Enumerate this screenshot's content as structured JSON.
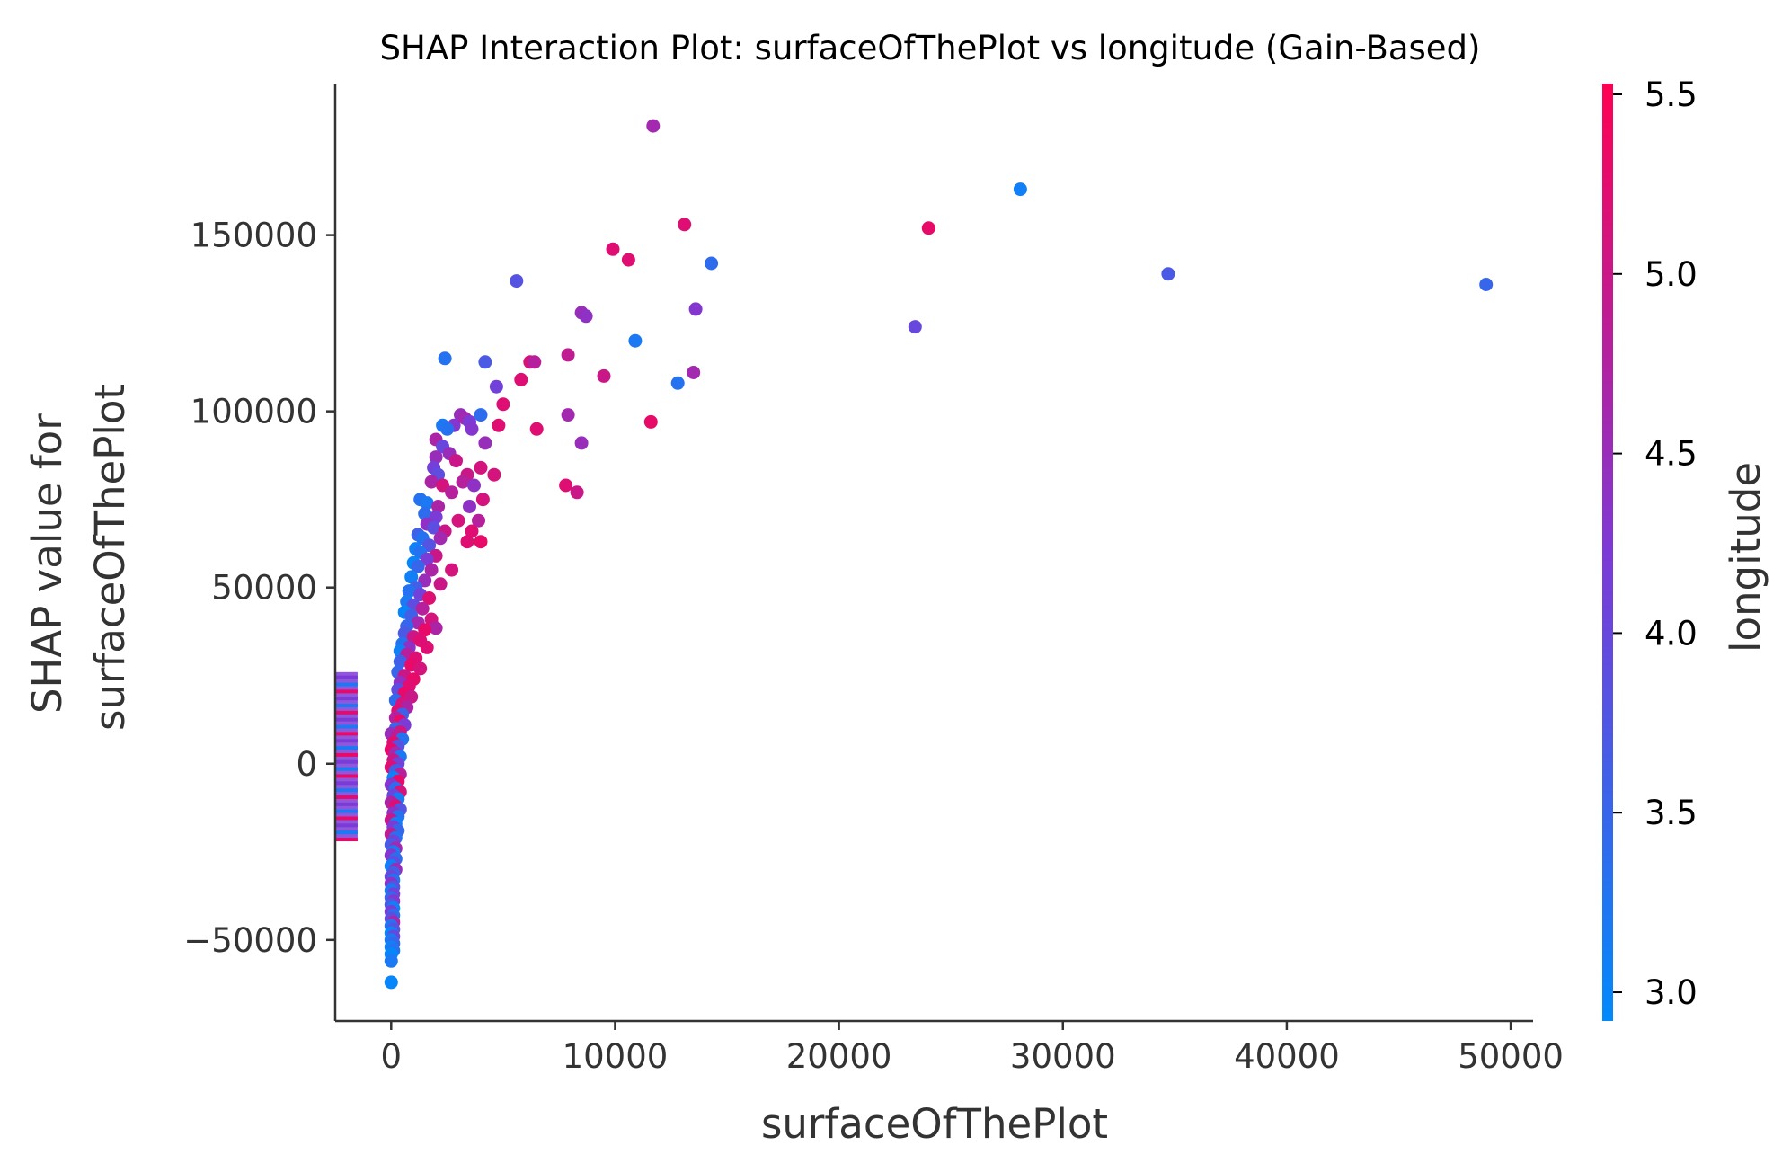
{
  "chart_data": {
    "type": "scatter",
    "title": "SHAP Interaction Plot: surfaceOfThePlot vs longitude (Gain-Based)",
    "xlabel": "surfaceOfThePlot",
    "ylabel_lines": [
      "SHAP value for",
      "surfaceOfThePlot"
    ],
    "colorbar_label": "longitude",
    "xlim": [
      -2500,
      51000
    ],
    "ylim": [
      -73000,
      193000
    ],
    "x_ticks": [
      0,
      10000,
      20000,
      30000,
      40000,
      50000
    ],
    "x_tick_labels": [
      "0",
      "10000",
      "20000",
      "30000",
      "40000",
      "50000"
    ],
    "y_ticks": [
      -50000,
      0,
      50000,
      100000,
      150000
    ],
    "y_tick_labels": [
      "−50000",
      "0",
      "50000",
      "100000",
      "150000"
    ],
    "color_range": [
      2.92,
      5.53
    ],
    "colorbar_ticks": [
      3.0,
      3.5,
      4.0,
      4.5,
      5.0,
      5.5
    ],
    "colorbar_tick_labels": [
      "3.0",
      "3.5",
      "4.0",
      "4.5",
      "5.0",
      "5.5"
    ],
    "colormap": [
      "#008afb",
      "#7d39d6",
      "#ff0052"
    ],
    "missing_x_strip": {
      "x_range": [
        -2500,
        -1500
      ],
      "y_range": [
        -22000,
        26000
      ]
    },
    "points": [
      [
        11700,
        181000,
        4.6
      ],
      [
        28100,
        163000,
        3.1
      ],
      [
        24000,
        152000,
        5.3
      ],
      [
        13100,
        153000,
        5.2
      ],
      [
        9900,
        146000,
        5.2
      ],
      [
        10600,
        143000,
        5.2
      ],
      [
        14300,
        142000,
        3.4
      ],
      [
        34700,
        139000,
        3.7
      ],
      [
        48900,
        136000,
        3.5
      ],
      [
        5600,
        137000,
        3.8
      ],
      [
        13600,
        129000,
        4.3
      ],
      [
        8500,
        128000,
        4.5
      ],
      [
        8700,
        127000,
        4.4
      ],
      [
        23400,
        124000,
        4.0
      ],
      [
        10900,
        120000,
        3.2
      ],
      [
        7900,
        116000,
        4.9
      ],
      [
        6200,
        114000,
        5.1
      ],
      [
        6400,
        114000,
        4.8
      ],
      [
        4200,
        114000,
        3.7
      ],
      [
        2400,
        115000,
        3.3
      ],
      [
        5800,
        109000,
        5.2
      ],
      [
        9500,
        110000,
        5.0
      ],
      [
        13500,
        111000,
        4.6
      ],
      [
        12800,
        108000,
        3.3
      ],
      [
        4700,
        107000,
        4.1
      ],
      [
        5000,
        102000,
        5.2
      ],
      [
        4000,
        99000,
        3.4
      ],
      [
        7900,
        99000,
        4.6
      ],
      [
        11600,
        97000,
        5.3
      ],
      [
        4800,
        96000,
        5.2
      ],
      [
        6500,
        95000,
        5.2
      ],
      [
        8500,
        91000,
        4.5
      ],
      [
        4200,
        91000,
        4.5
      ],
      [
        3100,
        99000,
        4.5
      ],
      [
        3300,
        98000,
        4.6
      ],
      [
        3500,
        97000,
        4.2
      ],
      [
        3600,
        95000,
        4.3
      ],
      [
        2800,
        96000,
        4.3
      ],
      [
        2300,
        96000,
        3.2
      ],
      [
        2500,
        95000,
        3.3
      ],
      [
        2000,
        92000,
        4.7
      ],
      [
        2300,
        90000,
        4.0
      ],
      [
        2600,
        88000,
        4.5
      ],
      [
        2000,
        87000,
        4.5
      ],
      [
        2900,
        86000,
        5.0
      ],
      [
        1900,
        84000,
        4.1
      ],
      [
        2100,
        82000,
        3.9
      ],
      [
        4600,
        82000,
        5.1
      ],
      [
        3400,
        82000,
        5.0
      ],
      [
        4000,
        84000,
        5.1
      ],
      [
        1800,
        80000,
        4.7
      ],
      [
        2300,
        79000,
        5.1
      ],
      [
        3200,
        80000,
        4.8
      ],
      [
        3700,
        79000,
        4.4
      ],
      [
        7800,
        79000,
        5.2
      ],
      [
        8300,
        77000,
        5.0
      ],
      [
        4100,
        75000,
        5.1
      ],
      [
        1300,
        75000,
        3.3
      ],
      [
        1600,
        74000,
        3.2
      ],
      [
        2100,
        73000,
        4.7
      ],
      [
        2700,
        77000,
        4.8
      ],
      [
        3500,
        73000,
        4.4
      ],
      [
        1500,
        71000,
        3.4
      ],
      [
        2000,
        70000,
        4.2
      ],
      [
        3900,
        69000,
        4.8
      ],
      [
        3000,
        69000,
        5.1
      ],
      [
        1600,
        68000,
        4.4
      ],
      [
        1900,
        67000,
        3.9
      ],
      [
        2400,
        66000,
        5.0
      ],
      [
        3600,
        66000,
        5.2
      ],
      [
        1200,
        65000,
        3.6
      ],
      [
        1400,
        64000,
        3.3
      ],
      [
        2200,
        64000,
        4.6
      ],
      [
        4000,
        63000,
        5.3
      ],
      [
        3400,
        63000,
        5.2
      ],
      [
        1700,
        62000,
        3.8
      ],
      [
        1100,
        61000,
        3.1
      ],
      [
        1300,
        60000,
        3.3
      ],
      [
        2000,
        59000,
        5.0
      ],
      [
        1600,
        58000,
        4.2
      ],
      [
        1000,
        57000,
        3.0
      ],
      [
        1200,
        56000,
        3.5
      ],
      [
        2700,
        55000,
        5.1
      ],
      [
        1800,
        55000,
        4.7
      ],
      [
        900,
        53000,
        3.1
      ],
      [
        1500,
        52000,
        4.5
      ],
      [
        2200,
        51000,
        5.0
      ],
      [
        1100,
        50000,
        3.6
      ],
      [
        800,
        49000,
        3.3
      ],
      [
        1300,
        48000,
        4.1
      ],
      [
        1700,
        47000,
        5.2
      ],
      [
        700,
        46000,
        3.2
      ],
      [
        1000,
        45000,
        3.9
      ],
      [
        1400,
        44000,
        4.8
      ],
      [
        600,
        43000,
        3.0
      ],
      [
        900,
        42000,
        3.6
      ],
      [
        1800,
        41000,
        5.1
      ],
      [
        1200,
        40000,
        4.6
      ],
      [
        700,
        39000,
        3.5
      ],
      [
        2000,
        38500,
        4.7
      ],
      [
        1500,
        38000,
        5.3
      ],
      [
        600,
        37000,
        3.7
      ],
      [
        1000,
        36000,
        5.0
      ],
      [
        1300,
        35000,
        5.2
      ],
      [
        500,
        34000,
        3.3
      ],
      [
        800,
        33000,
        4.4
      ],
      [
        1600,
        33000,
        5.2
      ],
      [
        400,
        32000,
        3.1
      ],
      [
        700,
        31000,
        4.8
      ],
      [
        1100,
        30000,
        5.2
      ],
      [
        400,
        29000,
        3.6
      ],
      [
        900,
        28000,
        5.3
      ],
      [
        1300,
        27000,
        5.1
      ],
      [
        300,
        26000,
        3.5
      ],
      [
        600,
        25000,
        5.0
      ],
      [
        1000,
        24000,
        5.3
      ],
      [
        400,
        23000,
        4.4
      ],
      [
        800,
        22000,
        5.2
      ],
      [
        300,
        21000,
        3.9
      ],
      [
        600,
        20000,
        5.3
      ],
      [
        900,
        19000,
        5.0
      ],
      [
        200,
        18000,
        3.4
      ],
      [
        500,
        17000,
        5.1
      ],
      [
        700,
        16000,
        4.7
      ],
      [
        300,
        15000,
        5.2
      ],
      [
        500,
        14000,
        3.6
      ],
      [
        200,
        13000,
        4.8
      ],
      [
        400,
        12000,
        5.3
      ],
      [
        600,
        11000,
        4.2
      ],
      [
        200,
        10000,
        3.5
      ],
      [
        400,
        9000,
        5.1
      ],
      [
        0,
        8500,
        4.5
      ],
      [
        300,
        8000,
        4.9
      ],
      [
        500,
        7000,
        3.3
      ],
      [
        100,
        6000,
        5.2
      ],
      [
        300,
        5000,
        3.8
      ],
      [
        0,
        4000,
        5.3
      ],
      [
        200,
        3000,
        4.6
      ],
      [
        400,
        2000,
        3.2
      ],
      [
        100,
        1000,
        5.0
      ],
      [
        300,
        0,
        4.1
      ],
      [
        0,
        -1000,
        5.2
      ],
      [
        200,
        -2000,
        3.6
      ],
      [
        400,
        -3000,
        4.8
      ],
      [
        100,
        -4000,
        3.1
      ],
      [
        300,
        -5000,
        5.3
      ],
      [
        0,
        -6000,
        4.3
      ],
      [
        200,
        -7000,
        3.4
      ],
      [
        400,
        -8000,
        5.1
      ],
      [
        100,
        -9000,
        4.0
      ],
      [
        300,
        -10000,
        3.2
      ],
      [
        0,
        -11000,
        4.7
      ],
      [
        200,
        -12000,
        5.2
      ],
      [
        400,
        -13000,
        3.8
      ],
      [
        100,
        -14000,
        4.4
      ],
      [
        300,
        -15000,
        3.3
      ],
      [
        0,
        -16000,
        5.0
      ],
      [
        200,
        -17000,
        3.1
      ],
      [
        100,
        -18000,
        4.2
      ],
      [
        300,
        -19000,
        3.5
      ],
      [
        0,
        -20000,
        4.9
      ],
      [
        200,
        -21000,
        3.3
      ],
      [
        100,
        -22000,
        4.1
      ],
      [
        0,
        -23000,
        3.7
      ],
      [
        200,
        -24000,
        4.6
      ],
      [
        100,
        -25000,
        3.2
      ],
      [
        0,
        -26000,
        4.3
      ],
      [
        200,
        -27000,
        3.4
      ],
      [
        100,
        -28000,
        3.9
      ],
      [
        0,
        -29000,
        3.1
      ],
      [
        200,
        -30000,
        4.5
      ],
      [
        100,
        -31000,
        3.6
      ],
      [
        0,
        -32000,
        4.0
      ],
      [
        100,
        -33000,
        3.3
      ],
      [
        0,
        -34000,
        4.4
      ],
      [
        100,
        -35000,
        3.8
      ],
      [
        0,
        -36000,
        3.2
      ],
      [
        100,
        -37000,
        4.1
      ],
      [
        0,
        -38000,
        3.5
      ],
      [
        100,
        -39000,
        4.3
      ],
      [
        0,
        -40000,
        3.7
      ],
      [
        100,
        -41000,
        3.1
      ],
      [
        0,
        -42000,
        4.2
      ],
      [
        100,
        -43000,
        3.4
      ],
      [
        0,
        -44000,
        3.9
      ],
      [
        100,
        -45000,
        4.6
      ],
      [
        0,
        -46000,
        3.3
      ],
      [
        100,
        -47000,
        3.8
      ],
      [
        0,
        -48000,
        3.0
      ],
      [
        100,
        -49000,
        4.0
      ],
      [
        0,
        -50000,
        3.2
      ],
      [
        100,
        -51000,
        3.5
      ],
      [
        0,
        -52000,
        3.1
      ],
      [
        100,
        -53000,
        3.3
      ],
      [
        0,
        -54000,
        3.0
      ],
      [
        0,
        -56000,
        3.2
      ],
      [
        0,
        -62000,
        3.0
      ]
    ]
  }
}
